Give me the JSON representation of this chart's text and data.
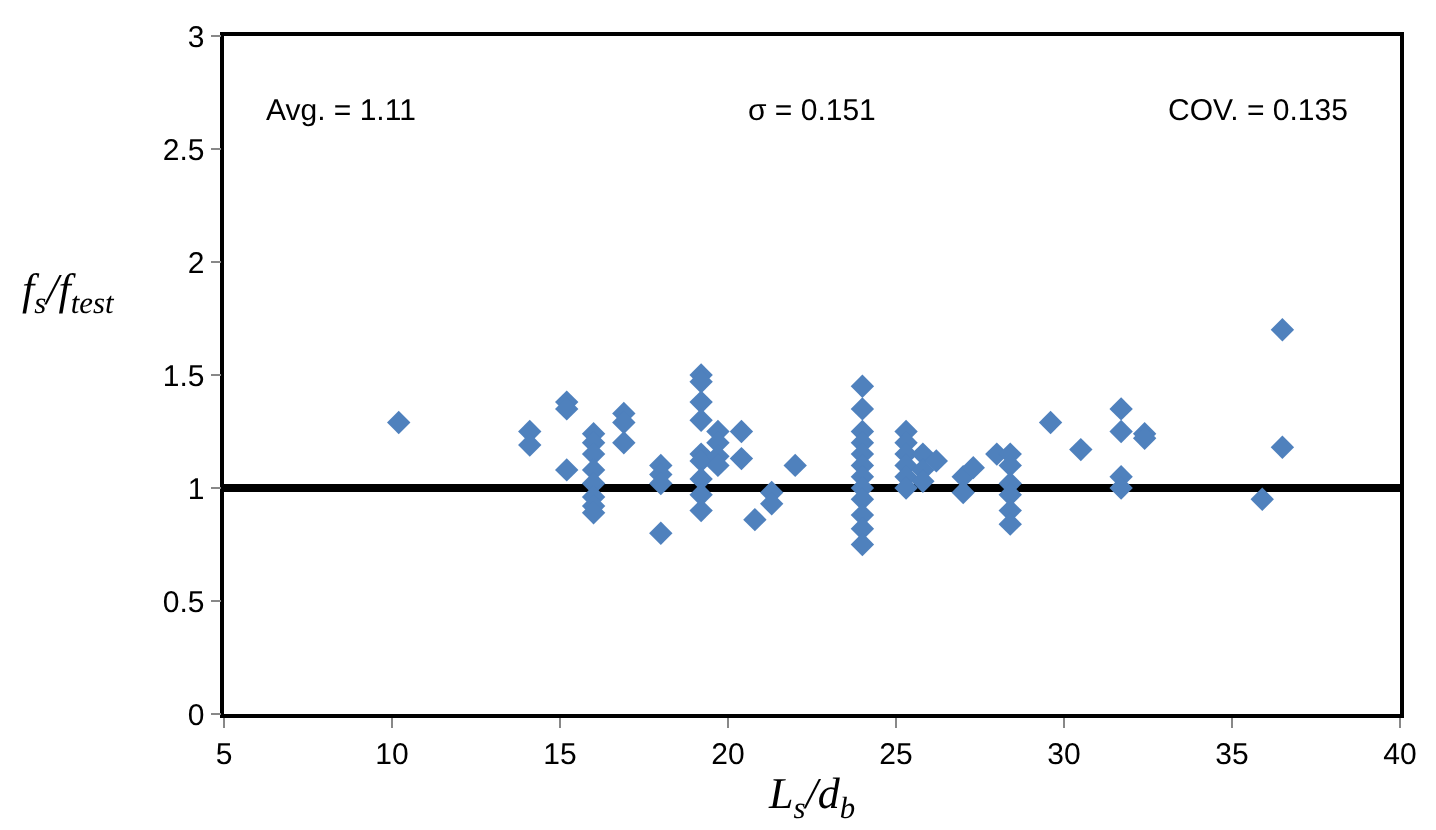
{
  "chart_data": {
    "type": "scatter",
    "xlabel": "L$_{s}$/d$_{b}$",
    "ylabel": "f$_{s}$/f$_{test}$",
    "annotations": [
      "Avg. = 1.11",
      "σ = 0.151",
      "COV. = 0.135"
    ],
    "series": [
      {
        "color": "#4f81bd",
        "x": [
          10.2,
          14.1,
          14.1,
          15.2,
          15.2,
          15.2,
          16,
          16,
          16,
          16,
          16,
          16,
          16,
          16,
          16.9,
          16.9,
          16.9,
          18,
          18,
          18,
          18,
          19.2,
          19.2,
          19.2,
          19.2,
          19.2,
          19.2,
          19.2,
          19.2,
          19.2,
          19.7,
          19.7,
          19.7,
          19.7,
          20.4,
          20.4,
          20.8,
          21.3,
          21.3,
          22,
          24,
          24,
          24,
          24,
          24,
          24,
          24,
          24,
          24,
          24,
          24,
          24,
          25.3,
          25.3,
          25.3,
          25.3,
          25.3,
          25.3,
          25.8,
          25.8,
          25.8,
          26.2,
          27,
          27,
          27.3,
          28,
          28.4,
          28.4,
          28.4,
          28.4,
          28.4,
          28.4,
          29.6,
          30.5,
          31.7,
          31.7,
          31.7,
          31.7,
          32.4,
          32.4,
          35.9,
          36.5,
          36.5
        ],
        "values": [
          1.29,
          1.25,
          1.19,
          1.38,
          1.35,
          1.08,
          1.24,
          1.2,
          1.15,
          1.08,
          1.02,
          0.96,
          0.92,
          0.89,
          1.33,
          1.29,
          1.2,
          1.1,
          1.06,
          1.02,
          0.8,
          1.5,
          1.47,
          1.38,
          1.3,
          1.15,
          1.12,
          1.04,
          0.97,
          0.9,
          1.25,
          1.2,
          1.14,
          1.1,
          1.25,
          1.13,
          0.86,
          0.98,
          0.93,
          1.1,
          1.45,
          1.35,
          1.25,
          1.2,
          1.15,
          1.1,
          1.05,
          1.0,
          0.95,
          0.88,
          0.82,
          0.75,
          1.25,
          1.2,
          1.15,
          1.1,
          1.05,
          1.0,
          1.15,
          1.08,
          1.03,
          1.12,
          1.05,
          0.98,
          1.09,
          1.15,
          1.15,
          1.1,
          1.02,
          0.97,
          0.9,
          0.84,
          1.29,
          1.17,
          1.35,
          1.25,
          1.05,
          1.0,
          1.24,
          1.22,
          0.95,
          1.7,
          1.18
        ]
      }
    ],
    "marker": "diamond",
    "grid": false,
    "xlim": [
      5,
      40
    ],
    "xticks": [
      5,
      10,
      15,
      20,
      25,
      30,
      35,
      40
    ],
    "ylim": [
      0,
      3
    ],
    "yticks": [
      0,
      0.5,
      1,
      1.5,
      2,
      2.5,
      3
    ],
    "ref_lines": [
      {
        "axis": "y",
        "value": 1,
        "color": "#000000",
        "line_style": "solid"
      }
    ]
  }
}
